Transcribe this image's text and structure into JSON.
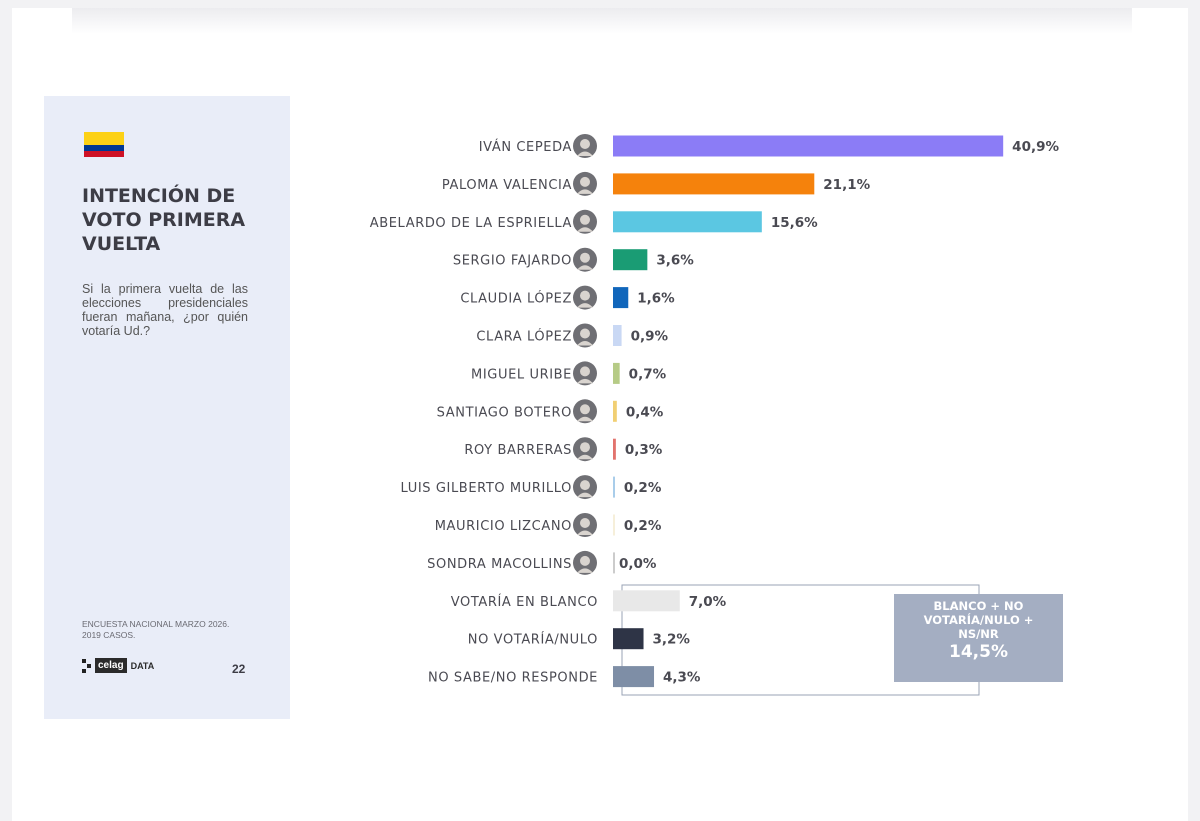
{
  "sidebar": {
    "title": "INTENCIÓN DE VOTO PRIMERA VUELTA",
    "question": "Si la primera vuelta de las elecciones presidenciales fueran mañana, ¿por quién votaría Ud.?",
    "footer_line1": "ENCUESTA NACIONAL MARZO 2026.",
    "footer_line2": "2019 CASOS.",
    "logo_text": "celag",
    "logo_suffix": "DATA",
    "page_number": "22",
    "flag_colors": [
      "#fcd116",
      "#003893",
      "#ce1126"
    ]
  },
  "chart_data": {
    "type": "bar",
    "orientation": "horizontal",
    "title": "INTENCIÓN DE VOTO PRIMERA VUELTA",
    "categories": [
      "IVÁN CEPEDA",
      "PALOMA VALENCIA",
      "ABELARDO DE LA ESPRIELLA",
      "SERGIO FAJARDO",
      "CLAUDIA LÓPEZ",
      "CLARA LÓPEZ",
      "MIGUEL URIBE",
      "SANTIAGO BOTERO",
      "ROY BARRERAS",
      "LUIS GILBERTO MURILLO",
      "MAURICIO LIZCANO",
      "SONDRA MACOLLINS",
      "VOTARÍA EN BLANCO",
      "NO VOTARÍA/NULO",
      "NO SABE/NO RESPONDE"
    ],
    "values": [
      40.9,
      21.1,
      15.6,
      3.6,
      1.6,
      0.9,
      0.7,
      0.4,
      0.3,
      0.2,
      0.2,
      0.0,
      7.0,
      3.2,
      4.3
    ],
    "value_labels": [
      "40,9%",
      "21,1%",
      "15,6%",
      "3,6%",
      "1,6%",
      "0,9%",
      "0,7%",
      "0,4%",
      "0,3%",
      "0,2%",
      "0,2%",
      "0,0%",
      "7,0%",
      "3,2%",
      "4,3%"
    ],
    "colors": [
      "#8b7cf6",
      "#f5820c",
      "#5bc7e2",
      "#1a9c74",
      "#1166bb",
      "#c9d8f4",
      "#b6cb86",
      "#f1cf73",
      "#e2736d",
      "#a9cdea",
      "#f6efda",
      "#cccccc",
      "#e8e8e8",
      "#2e3446",
      "#7e8ea6"
    ],
    "has_avatar": [
      true,
      true,
      true,
      true,
      true,
      true,
      true,
      true,
      true,
      true,
      true,
      true,
      false,
      false,
      false
    ],
    "xlim": [
      0,
      45
    ],
    "unit": "%",
    "grid": false,
    "group_box": {
      "label": "BLANCO + NO VOTARÍA/NULO + NS/NR",
      "value": 14.5,
      "value_label": "14,5%"
    }
  }
}
